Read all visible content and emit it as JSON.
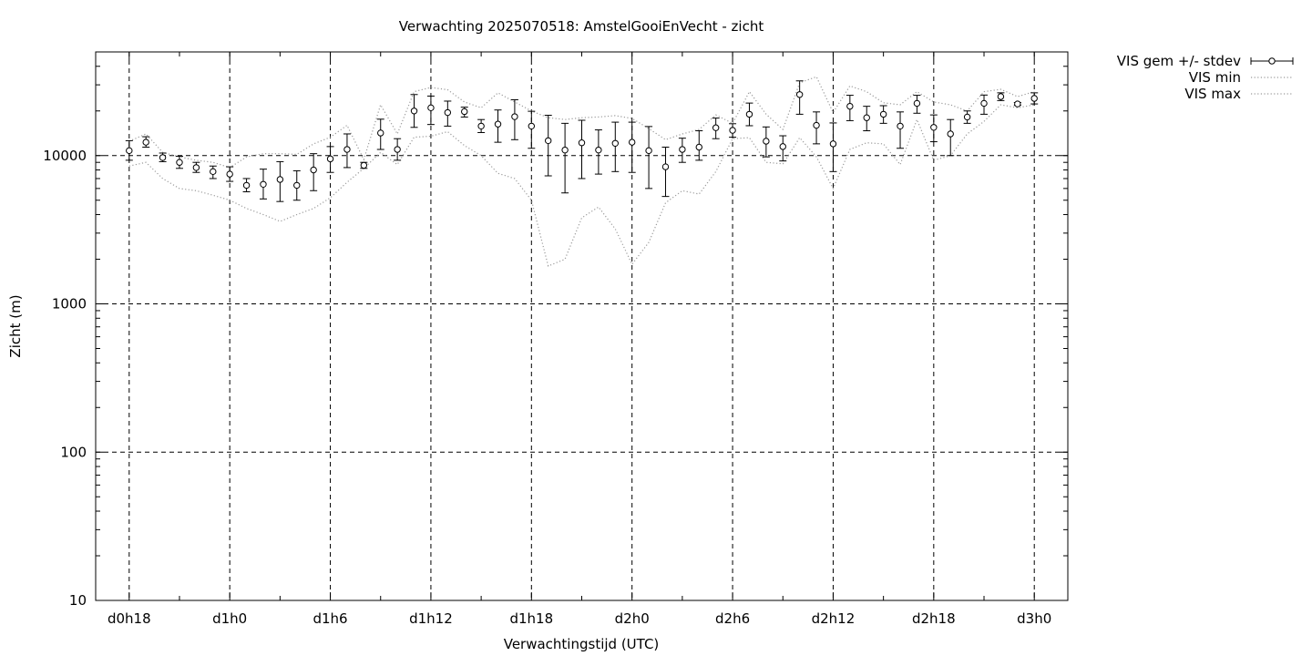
{
  "chart_data": {
    "type": "scatter",
    "title": "Verwachting 2025070518: AmstelGooiEnVecht - zicht",
    "xlabel": "Verwachtingstijd (UTC)",
    "ylabel": "Zicht (m)",
    "yscale": "log",
    "ylim": [
      10,
      50000
    ],
    "xlim": [
      -2,
      56
    ],
    "x_unit": "hours after d0h18",
    "grid": true,
    "legend_position": "outside top-right",
    "y_ticks": [
      {
        "value": 10,
        "label": "10"
      },
      {
        "value": 100,
        "label": "100"
      },
      {
        "value": 1000,
        "label": "1000"
      },
      {
        "value": 10000,
        "label": "10000"
      }
    ],
    "x_ticks": [
      {
        "value": 0,
        "label": "d0h18"
      },
      {
        "value": 6,
        "label": "d1h0"
      },
      {
        "value": 12,
        "label": "d1h6"
      },
      {
        "value": 18,
        "label": "d1h12"
      },
      {
        "value": 24,
        "label": "d1h18"
      },
      {
        "value": 30,
        "label": "d2h0"
      },
      {
        "value": 36,
        "label": "d2h6"
      },
      {
        "value": 42,
        "label": "d2h12"
      },
      {
        "value": 48,
        "label": "d2h18"
      },
      {
        "value": 54,
        "label": "d3h0"
      }
    ],
    "legend": [
      {
        "label": "VIS gem +/- stdev",
        "style": "errorbar-circle"
      },
      {
        "label": "VIS min",
        "style": "dotted"
      },
      {
        "label": "VIS max",
        "style": "dotted"
      }
    ],
    "series": [
      {
        "name": "VIS gem +/- stdev",
        "x": [
          0,
          1,
          2,
          3,
          4,
          5,
          6,
          7,
          8,
          9,
          10,
          11,
          12,
          13,
          14,
          15,
          16,
          17,
          18,
          19,
          20,
          21,
          22,
          23,
          24,
          25,
          26,
          27,
          28,
          29,
          30,
          31,
          32,
          33,
          34,
          35,
          36,
          37,
          38,
          39,
          40,
          41,
          42,
          43,
          44,
          45,
          46,
          47,
          48,
          49,
          50,
          51,
          52,
          53,
          54
        ],
        "mean": [
          10800,
          12300,
          9700,
          9000,
          8300,
          7800,
          7500,
          6300,
          6400,
          6900,
          6300,
          8000,
          9500,
          11000,
          8600,
          14200,
          11000,
          20000,
          21000,
          19500,
          19800,
          15800,
          16300,
          18300,
          15800,
          12600,
          10900,
          12200,
          10900,
          12100,
          12300,
          10800,
          8400,
          11000,
          11400,
          15400,
          14800,
          19000,
          12500,
          11500,
          25800,
          16000,
          12000,
          21500,
          18000,
          19000,
          15800,
          22500,
          15500,
          14000,
          18200,
          22500,
          25000,
          22300,
          24300
        ],
        "low": [
          9300,
          11400,
          9100,
          8200,
          7700,
          7000,
          6700,
          5700,
          5100,
          4900,
          5000,
          5800,
          7700,
          8300,
          8200,
          11000,
          9300,
          15500,
          16200,
          15800,
          18200,
          14300,
          12300,
          12800,
          11200,
          7300,
          5600,
          7000,
          7500,
          7800,
          7700,
          6000,
          5300,
          9000,
          9300,
          13000,
          13300,
          15900,
          9800,
          9200,
          19000,
          12000,
          7800,
          17200,
          14700,
          16500,
          11200,
          19300,
          12400,
          10000,
          16500,
          19000,
          23500,
          21800,
          22300
        ],
        "high": [
          12600,
          13400,
          10400,
          9900,
          9000,
          8500,
          8400,
          7000,
          8100,
          9100,
          7900,
          10300,
          11500,
          14000,
          9000,
          17600,
          13000,
          25800,
          25200,
          23300,
          21200,
          17500,
          20300,
          23800,
          19900,
          18700,
          16500,
          17300,
          14900,
          16800,
          16800,
          15700,
          11400,
          13100,
          14700,
          17900,
          16400,
          22600,
          15600,
          13600,
          31900,
          19700,
          16600,
          25500,
          21500,
          21700,
          19700,
          25500,
          18800,
          17500,
          20000,
          25600,
          26500,
          22800,
          26500
        ]
      },
      {
        "name": "VIS min",
        "x": [
          0,
          1,
          2,
          3,
          4,
          5,
          6,
          7,
          8,
          9,
          10,
          11,
          12,
          13,
          14,
          15,
          16,
          17,
          18,
          19,
          20,
          21,
          22,
          23,
          24,
          25,
          26,
          27,
          28,
          29,
          30,
          31,
          32,
          33,
          34,
          35,
          36,
          37,
          38,
          39,
          40,
          41,
          42,
          43,
          44,
          45,
          46,
          47,
          48,
          49,
          50,
          51,
          52,
          53,
          54
        ],
        "values": [
          8500,
          9000,
          7000,
          6000,
          5800,
          5400,
          5000,
          4400,
          4000,
          3600,
          4000,
          4400,
          5200,
          6600,
          8200,
          10500,
          8700,
          13300,
          13500,
          14500,
          11700,
          10000,
          7600,
          7000,
          5000,
          1800,
          2000,
          3800,
          4500,
          3200,
          1850,
          2600,
          4800,
          5800,
          5500,
          7800,
          13000,
          13200,
          9000,
          8800,
          13200,
          9800,
          6000,
          11000,
          12200,
          12000,
          8700,
          17500,
          9300,
          10000,
          14000,
          17000,
          22000,
          21000,
          22000
        ]
      },
      {
        "name": "VIS max",
        "x": [
          0,
          1,
          2,
          3,
          4,
          5,
          6,
          7,
          8,
          9,
          10,
          11,
          12,
          13,
          14,
          15,
          16,
          17,
          18,
          19,
          20,
          21,
          22,
          23,
          24,
          25,
          26,
          27,
          28,
          29,
          30,
          31,
          32,
          33,
          34,
          35,
          36,
          37,
          38,
          39,
          40,
          41,
          42,
          43,
          44,
          45,
          46,
          47,
          48,
          49,
          50,
          51,
          52,
          53,
          54
        ],
        "values": [
          12500,
          14000,
          10500,
          9800,
          9300,
          9000,
          8300,
          9800,
          10300,
          10300,
          10200,
          12000,
          13300,
          16000,
          9400,
          22000,
          14000,
          27000,
          28800,
          27800,
          23000,
          21000,
          26500,
          23000,
          20000,
          18000,
          17500,
          18000,
          18200,
          18600,
          17800,
          15200,
          12800,
          14000,
          15000,
          18800,
          16500,
          27000,
          19000,
          15000,
          31000,
          34000,
          19500,
          29500,
          27000,
          22700,
          22000,
          27000,
          23000,
          22000,
          20000,
          27000,
          28000,
          25000,
          27000
        ]
      }
    ]
  }
}
